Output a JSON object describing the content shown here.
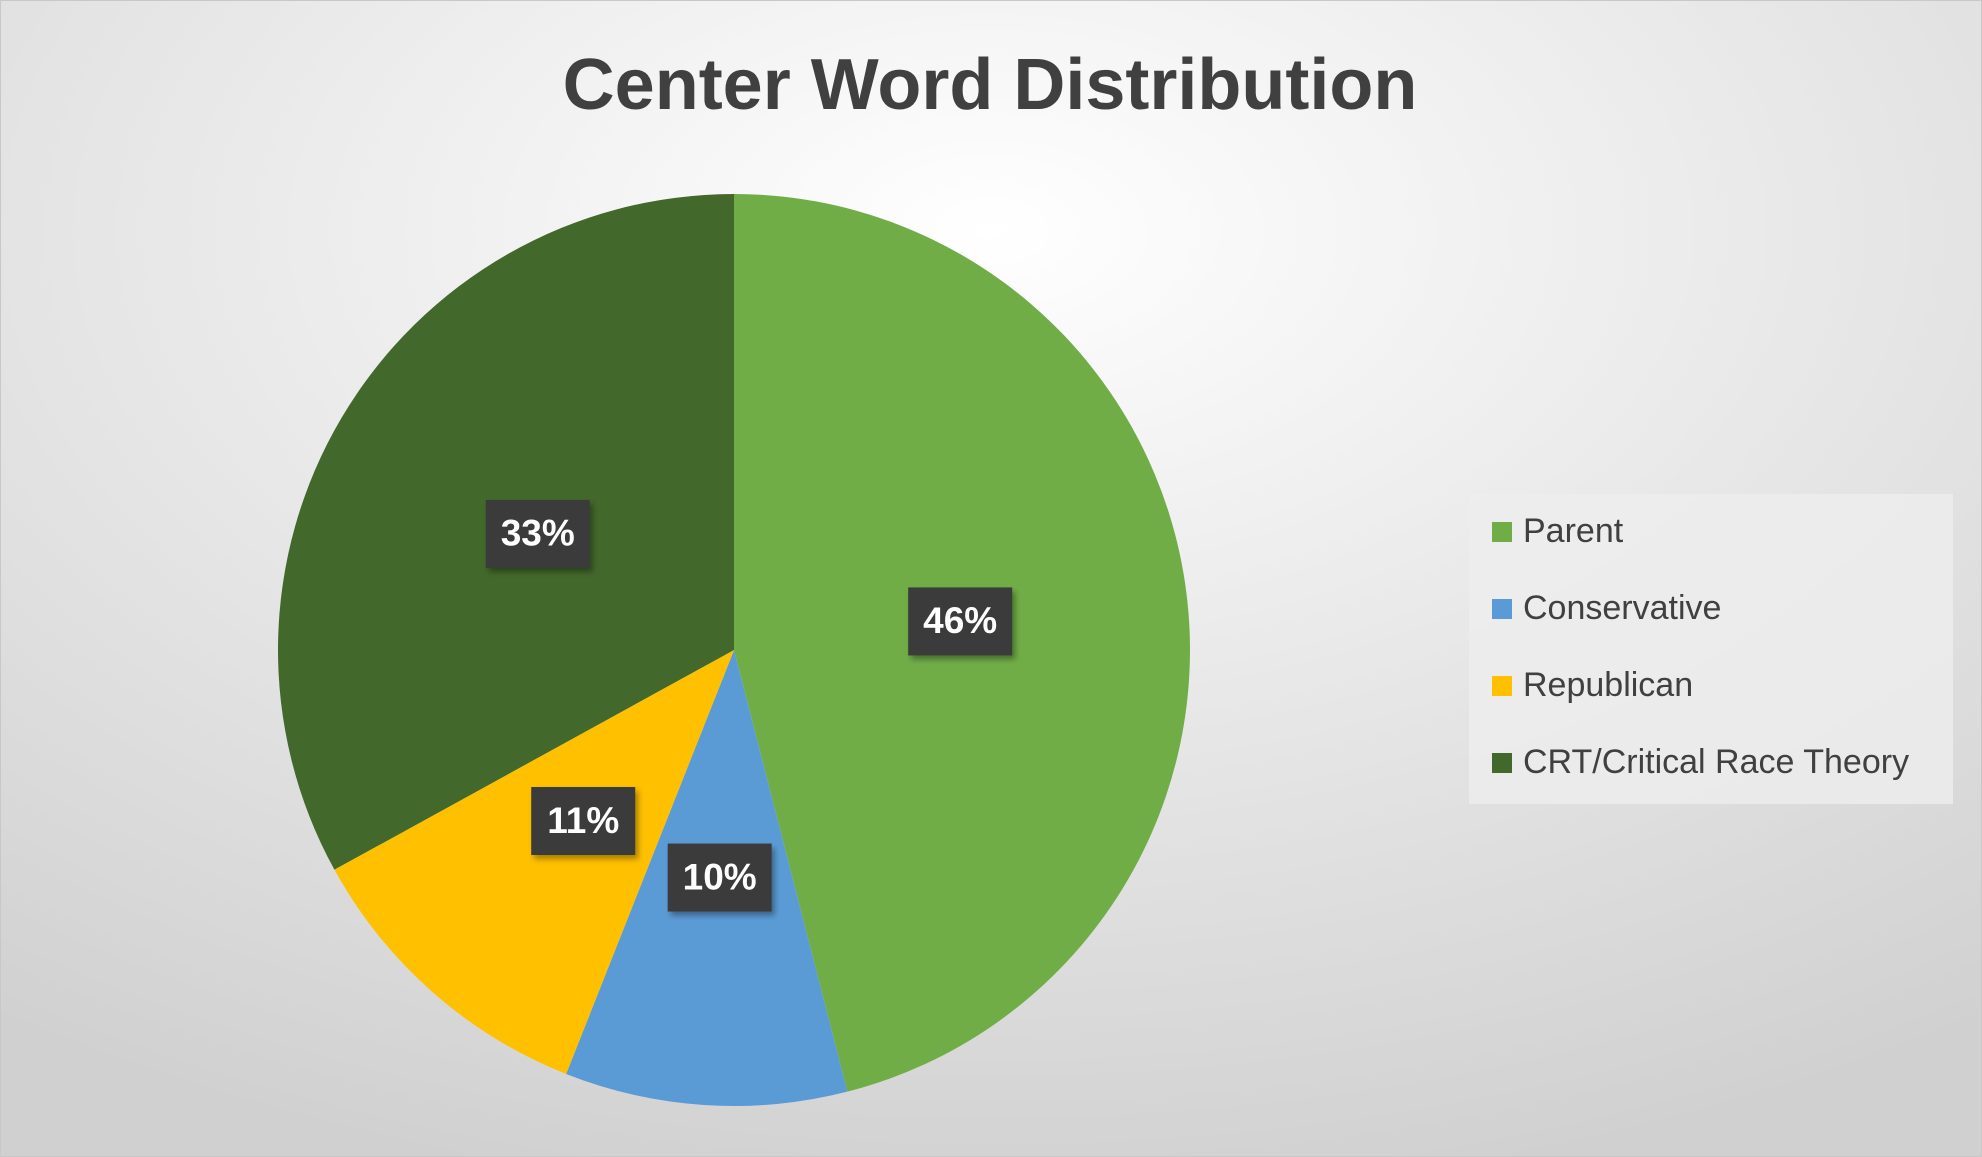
{
  "chart_data": {
    "type": "pie",
    "title": "Center Word Distribution",
    "categories": [
      "Parent",
      "Conservative",
      "Republican",
      "CRT/Critical Race Theory"
    ],
    "values": [
      46,
      10,
      11,
      33
    ],
    "value_labels": [
      "46%",
      "10%",
      "11%",
      "33%"
    ],
    "colors": [
      "#70ad47",
      "#5b9bd5",
      "#ffc000",
      "#43682b"
    ],
    "legend": "right"
  }
}
